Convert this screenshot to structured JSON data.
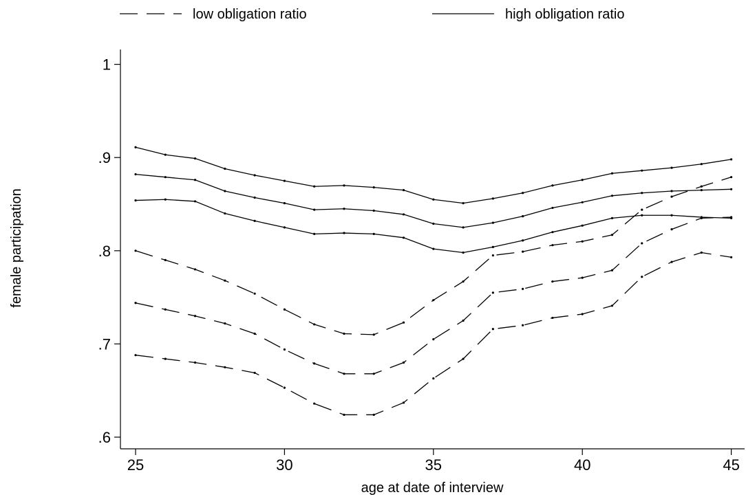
{
  "chart_data": {
    "type": "line",
    "xlabel": "age at date of interview",
    "ylabel": "female participation",
    "xlim": [
      24.5,
      45.5
    ],
    "ylim": [
      0.59,
      1.02
    ],
    "xticks": [
      25,
      30,
      35,
      40,
      45
    ],
    "xtick_labels": [
      "25",
      "30",
      "35",
      "40",
      "45"
    ],
    "yticks": [
      0.6,
      0.7,
      0.8,
      0.9,
      1.0
    ],
    "ytick_labels": [
      ".6",
      ".7",
      ".8",
      ".9",
      "1"
    ],
    "grid": false,
    "legend_position": "top",
    "legend": [
      {
        "label": "low obligation ratio",
        "style": "dashed"
      },
      {
        "label": "high obligation ratio",
        "style": "solid"
      }
    ],
    "x": [
      25,
      26,
      27,
      28,
      29,
      30,
      31,
      32,
      33,
      34,
      35,
      36,
      37,
      38,
      39,
      40,
      41,
      42,
      43,
      44,
      45
    ],
    "series": [
      {
        "group": "high obligation ratio",
        "style": "solid",
        "values": [
          0.911,
          0.903,
          0.899,
          0.888,
          0.881,
          0.875,
          0.869,
          0.87,
          0.868,
          0.865,
          0.855,
          0.851,
          0.856,
          0.862,
          0.87,
          0.876,
          0.883,
          0.886,
          0.889,
          0.893,
          0.898
        ]
      },
      {
        "group": "high obligation ratio",
        "style": "solid",
        "values": [
          0.882,
          0.879,
          0.876,
          0.864,
          0.857,
          0.851,
          0.844,
          0.845,
          0.843,
          0.839,
          0.829,
          0.825,
          0.83,
          0.837,
          0.846,
          0.852,
          0.859,
          0.862,
          0.864,
          0.865,
          0.866
        ]
      },
      {
        "group": "high obligation ratio",
        "style": "solid",
        "values": [
          0.854,
          0.855,
          0.853,
          0.84,
          0.832,
          0.825,
          0.818,
          0.819,
          0.818,
          0.814,
          0.802,
          0.798,
          0.804,
          0.811,
          0.82,
          0.827,
          0.835,
          0.838,
          0.838,
          0.836,
          0.835
        ]
      },
      {
        "group": "low obligation ratio",
        "style": "dashed",
        "values": [
          0.8,
          0.79,
          0.78,
          0.768,
          0.754,
          0.737,
          0.721,
          0.711,
          0.71,
          0.723,
          0.747,
          0.767,
          0.795,
          0.799,
          0.806,
          0.81,
          0.817,
          0.844,
          0.858,
          0.869,
          0.879
        ]
      },
      {
        "group": "low obligation ratio",
        "style": "dashed",
        "values": [
          0.744,
          0.737,
          0.73,
          0.722,
          0.711,
          0.694,
          0.679,
          0.668,
          0.668,
          0.68,
          0.705,
          0.725,
          0.755,
          0.759,
          0.767,
          0.771,
          0.779,
          0.808,
          0.823,
          0.835,
          0.836
        ]
      },
      {
        "group": "low obligation ratio",
        "style": "dashed",
        "values": [
          0.688,
          0.684,
          0.68,
          0.675,
          0.669,
          0.653,
          0.636,
          0.624,
          0.624,
          0.637,
          0.663,
          0.684,
          0.716,
          0.72,
          0.728,
          0.732,
          0.741,
          0.772,
          0.788,
          0.798,
          0.793
        ]
      }
    ]
  }
}
